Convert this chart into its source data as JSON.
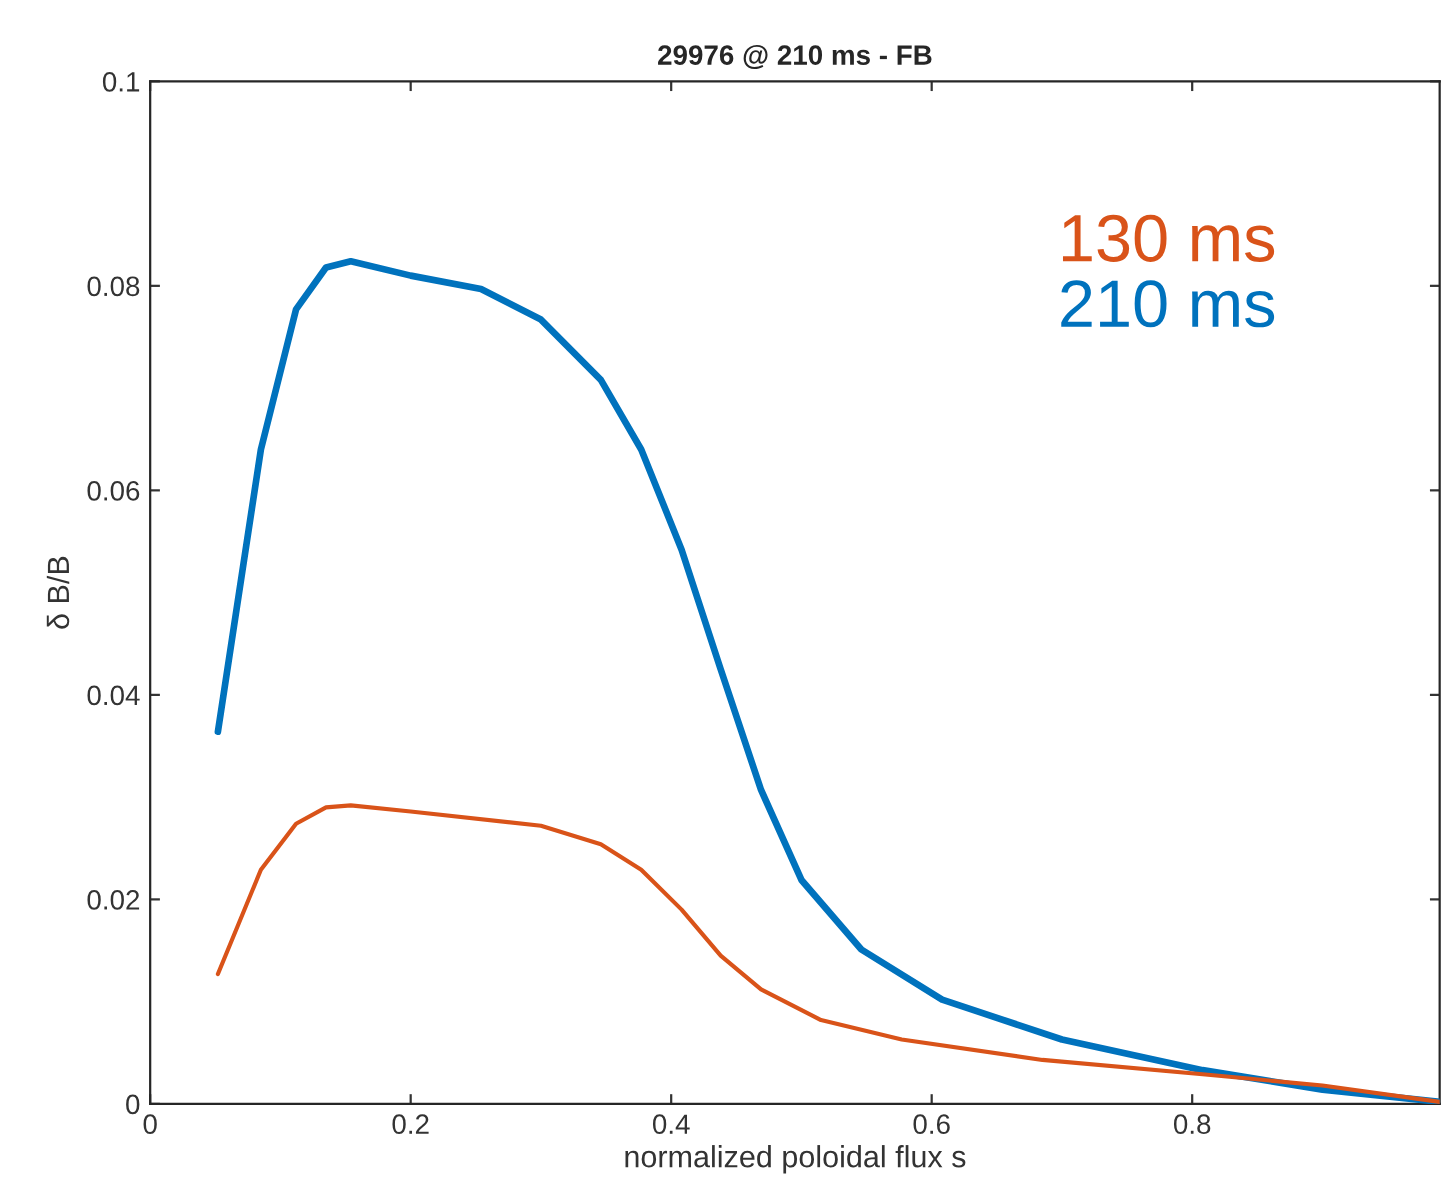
{
  "chart_data": {
    "type": "line",
    "title": "29976 @ 210 ms - FB",
    "xlabel": "normalized poloidal flux s",
    "ylabel": "δ B/B",
    "series": [
      {
        "name": "130 ms",
        "color": "#d95319",
        "x": [
          0.052,
          0.085,
          0.112,
          0.135,
          0.154,
          0.2,
          0.3,
          0.346,
          0.377,
          0.408,
          0.438,
          0.469,
          0.515,
          0.577,
          0.685,
          0.808,
          0.9,
          0.99
        ],
        "values": [
          0.0127,
          0.0229,
          0.0274,
          0.029,
          0.0292,
          0.0286,
          0.0272,
          0.0254,
          0.0229,
          0.019,
          0.0145,
          0.0112,
          0.0082,
          0.0063,
          0.0043,
          0.0029,
          0.0018,
          0.0002
        ]
      },
      {
        "name": "210 ms",
        "color": "#0072bd",
        "x": [
          0.052,
          0.085,
          0.112,
          0.135,
          0.154,
          0.2,
          0.254,
          0.3,
          0.346,
          0.377,
          0.408,
          0.438,
          0.469,
          0.5,
          0.546,
          0.608,
          0.7,
          0.808,
          0.9,
          0.99
        ],
        "values": [
          0.0364,
          0.064,
          0.0777,
          0.0818,
          0.0824,
          0.081,
          0.0797,
          0.0767,
          0.0708,
          0.064,
          0.0542,
          0.0425,
          0.0307,
          0.0219,
          0.0151,
          0.0102,
          0.0063,
          0.0033,
          0.0014,
          0.0002
        ]
      }
    ],
    "xlim": [
      0,
      0.99
    ],
    "ylim": [
      0,
      0.1
    ],
    "xticks": [
      0,
      0.2,
      0.4,
      0.6,
      0.8
    ],
    "yticks": [
      0,
      0.02,
      0.04,
      0.06,
      0.08,
      0.1
    ],
    "grid": false,
    "legend": "top right"
  }
}
